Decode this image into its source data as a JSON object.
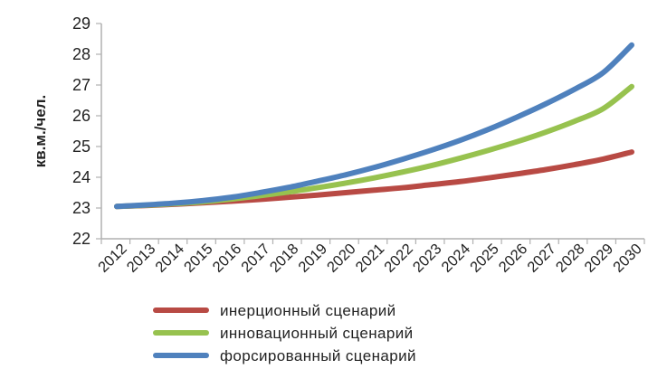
{
  "chart_data": {
    "type": "line",
    "title": "",
    "xlabel": "",
    "ylabel": "кв.м./чел.",
    "x": [
      "2012",
      "2013",
      "2014",
      "2015",
      "2016",
      "2017",
      "2018",
      "2019",
      "2020",
      "2021",
      "2022",
      "2023",
      "2024",
      "2025",
      "2026",
      "2027",
      "2028",
      "2029",
      "2030"
    ],
    "ylim": [
      22,
      29
    ],
    "yticks": [
      22,
      23,
      24,
      25,
      26,
      27,
      28,
      29
    ],
    "grid": false,
    "legend_position": "bottom",
    "series": [
      {
        "name": "инерционный сценарий",
        "color": "#b84a44",
        "values": [
          23.05,
          23.08,
          23.12,
          23.17,
          23.22,
          23.28,
          23.35,
          23.42,
          23.5,
          23.58,
          23.66,
          23.76,
          23.86,
          23.98,
          24.11,
          24.25,
          24.41,
          24.59,
          24.82
        ]
      },
      {
        "name": "инновационный сценарий",
        "color": "#97c24f",
        "values": [
          23.05,
          23.09,
          23.14,
          23.2,
          23.29,
          23.4,
          23.52,
          23.66,
          23.81,
          23.98,
          24.17,
          24.38,
          24.62,
          24.88,
          25.16,
          25.47,
          25.82,
          26.23,
          26.95
        ]
      },
      {
        "name": "форсированный сценарий",
        "color": "#4f81bd",
        "values": [
          23.05,
          23.1,
          23.16,
          23.24,
          23.35,
          23.5,
          23.67,
          23.87,
          24.08,
          24.32,
          24.59,
          24.88,
          25.2,
          25.56,
          25.96,
          26.39,
          26.86,
          27.4,
          28.3
        ]
      }
    ]
  }
}
